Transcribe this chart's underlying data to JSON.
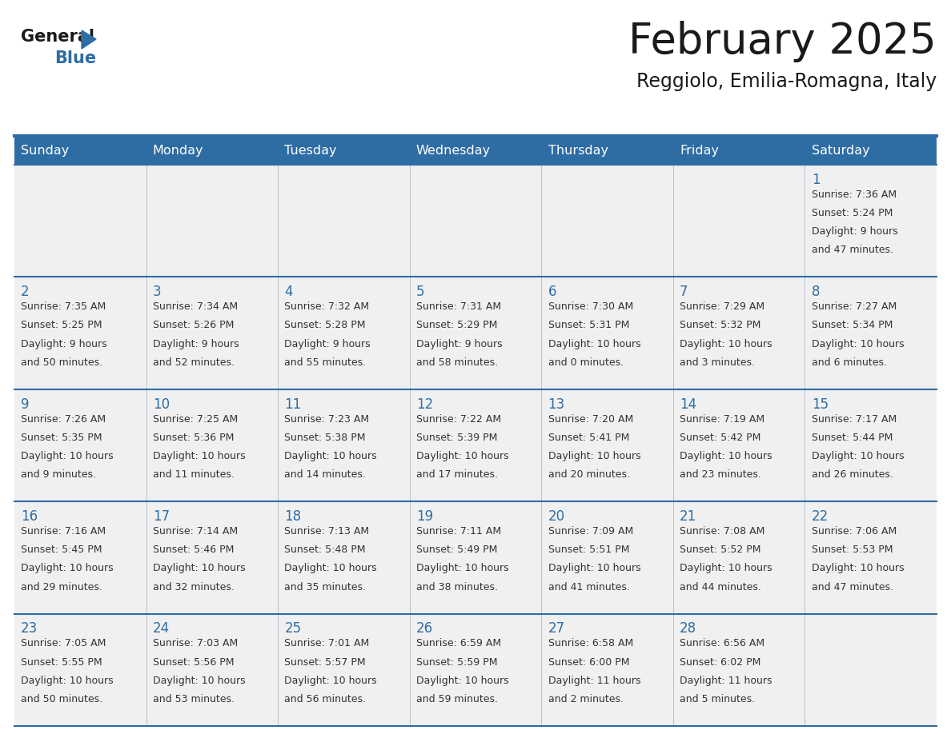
{
  "title": "February 2025",
  "subtitle": "Reggiolo, Emilia-Romagna, Italy",
  "header_bg": "#2E6DA4",
  "header_text": "#FFFFFF",
  "cell_bg": "#F0F0F0",
  "day_number_color": "#2E6DA4",
  "cell_text_color": "#333333",
  "border_color": "#2E6DA4",
  "logo_general_color": "#1a1a1a",
  "logo_blue_color": "#2E6DA4",
  "days_of_week": [
    "Sunday",
    "Monday",
    "Tuesday",
    "Wednesday",
    "Thursday",
    "Friday",
    "Saturday"
  ],
  "weeks": [
    [
      {
        "day": null,
        "data": null
      },
      {
        "day": null,
        "data": null
      },
      {
        "day": null,
        "data": null
      },
      {
        "day": null,
        "data": null
      },
      {
        "day": null,
        "data": null
      },
      {
        "day": null,
        "data": null
      },
      {
        "day": 1,
        "data": "Sunrise: 7:36 AM\nSunset: 5:24 PM\nDaylight: 9 hours\nand 47 minutes."
      }
    ],
    [
      {
        "day": 2,
        "data": "Sunrise: 7:35 AM\nSunset: 5:25 PM\nDaylight: 9 hours\nand 50 minutes."
      },
      {
        "day": 3,
        "data": "Sunrise: 7:34 AM\nSunset: 5:26 PM\nDaylight: 9 hours\nand 52 minutes."
      },
      {
        "day": 4,
        "data": "Sunrise: 7:32 AM\nSunset: 5:28 PM\nDaylight: 9 hours\nand 55 minutes."
      },
      {
        "day": 5,
        "data": "Sunrise: 7:31 AM\nSunset: 5:29 PM\nDaylight: 9 hours\nand 58 minutes."
      },
      {
        "day": 6,
        "data": "Sunrise: 7:30 AM\nSunset: 5:31 PM\nDaylight: 10 hours\nand 0 minutes."
      },
      {
        "day": 7,
        "data": "Sunrise: 7:29 AM\nSunset: 5:32 PM\nDaylight: 10 hours\nand 3 minutes."
      },
      {
        "day": 8,
        "data": "Sunrise: 7:27 AM\nSunset: 5:34 PM\nDaylight: 10 hours\nand 6 minutes."
      }
    ],
    [
      {
        "day": 9,
        "data": "Sunrise: 7:26 AM\nSunset: 5:35 PM\nDaylight: 10 hours\nand 9 minutes."
      },
      {
        "day": 10,
        "data": "Sunrise: 7:25 AM\nSunset: 5:36 PM\nDaylight: 10 hours\nand 11 minutes."
      },
      {
        "day": 11,
        "data": "Sunrise: 7:23 AM\nSunset: 5:38 PM\nDaylight: 10 hours\nand 14 minutes."
      },
      {
        "day": 12,
        "data": "Sunrise: 7:22 AM\nSunset: 5:39 PM\nDaylight: 10 hours\nand 17 minutes."
      },
      {
        "day": 13,
        "data": "Sunrise: 7:20 AM\nSunset: 5:41 PM\nDaylight: 10 hours\nand 20 minutes."
      },
      {
        "day": 14,
        "data": "Sunrise: 7:19 AM\nSunset: 5:42 PM\nDaylight: 10 hours\nand 23 minutes."
      },
      {
        "day": 15,
        "data": "Sunrise: 7:17 AM\nSunset: 5:44 PM\nDaylight: 10 hours\nand 26 minutes."
      }
    ],
    [
      {
        "day": 16,
        "data": "Sunrise: 7:16 AM\nSunset: 5:45 PM\nDaylight: 10 hours\nand 29 minutes."
      },
      {
        "day": 17,
        "data": "Sunrise: 7:14 AM\nSunset: 5:46 PM\nDaylight: 10 hours\nand 32 minutes."
      },
      {
        "day": 18,
        "data": "Sunrise: 7:13 AM\nSunset: 5:48 PM\nDaylight: 10 hours\nand 35 minutes."
      },
      {
        "day": 19,
        "data": "Sunrise: 7:11 AM\nSunset: 5:49 PM\nDaylight: 10 hours\nand 38 minutes."
      },
      {
        "day": 20,
        "data": "Sunrise: 7:09 AM\nSunset: 5:51 PM\nDaylight: 10 hours\nand 41 minutes."
      },
      {
        "day": 21,
        "data": "Sunrise: 7:08 AM\nSunset: 5:52 PM\nDaylight: 10 hours\nand 44 minutes."
      },
      {
        "day": 22,
        "data": "Sunrise: 7:06 AM\nSunset: 5:53 PM\nDaylight: 10 hours\nand 47 minutes."
      }
    ],
    [
      {
        "day": 23,
        "data": "Sunrise: 7:05 AM\nSunset: 5:55 PM\nDaylight: 10 hours\nand 50 minutes."
      },
      {
        "day": 24,
        "data": "Sunrise: 7:03 AM\nSunset: 5:56 PM\nDaylight: 10 hours\nand 53 minutes."
      },
      {
        "day": 25,
        "data": "Sunrise: 7:01 AM\nSunset: 5:57 PM\nDaylight: 10 hours\nand 56 minutes."
      },
      {
        "day": 26,
        "data": "Sunrise: 6:59 AM\nSunset: 5:59 PM\nDaylight: 10 hours\nand 59 minutes."
      },
      {
        "day": 27,
        "data": "Sunrise: 6:58 AM\nSunset: 6:00 PM\nDaylight: 11 hours\nand 2 minutes."
      },
      {
        "day": 28,
        "data": "Sunrise: 6:56 AM\nSunset: 6:02 PM\nDaylight: 11 hours\nand 5 minutes."
      },
      {
        "day": null,
        "data": null
      }
    ]
  ]
}
